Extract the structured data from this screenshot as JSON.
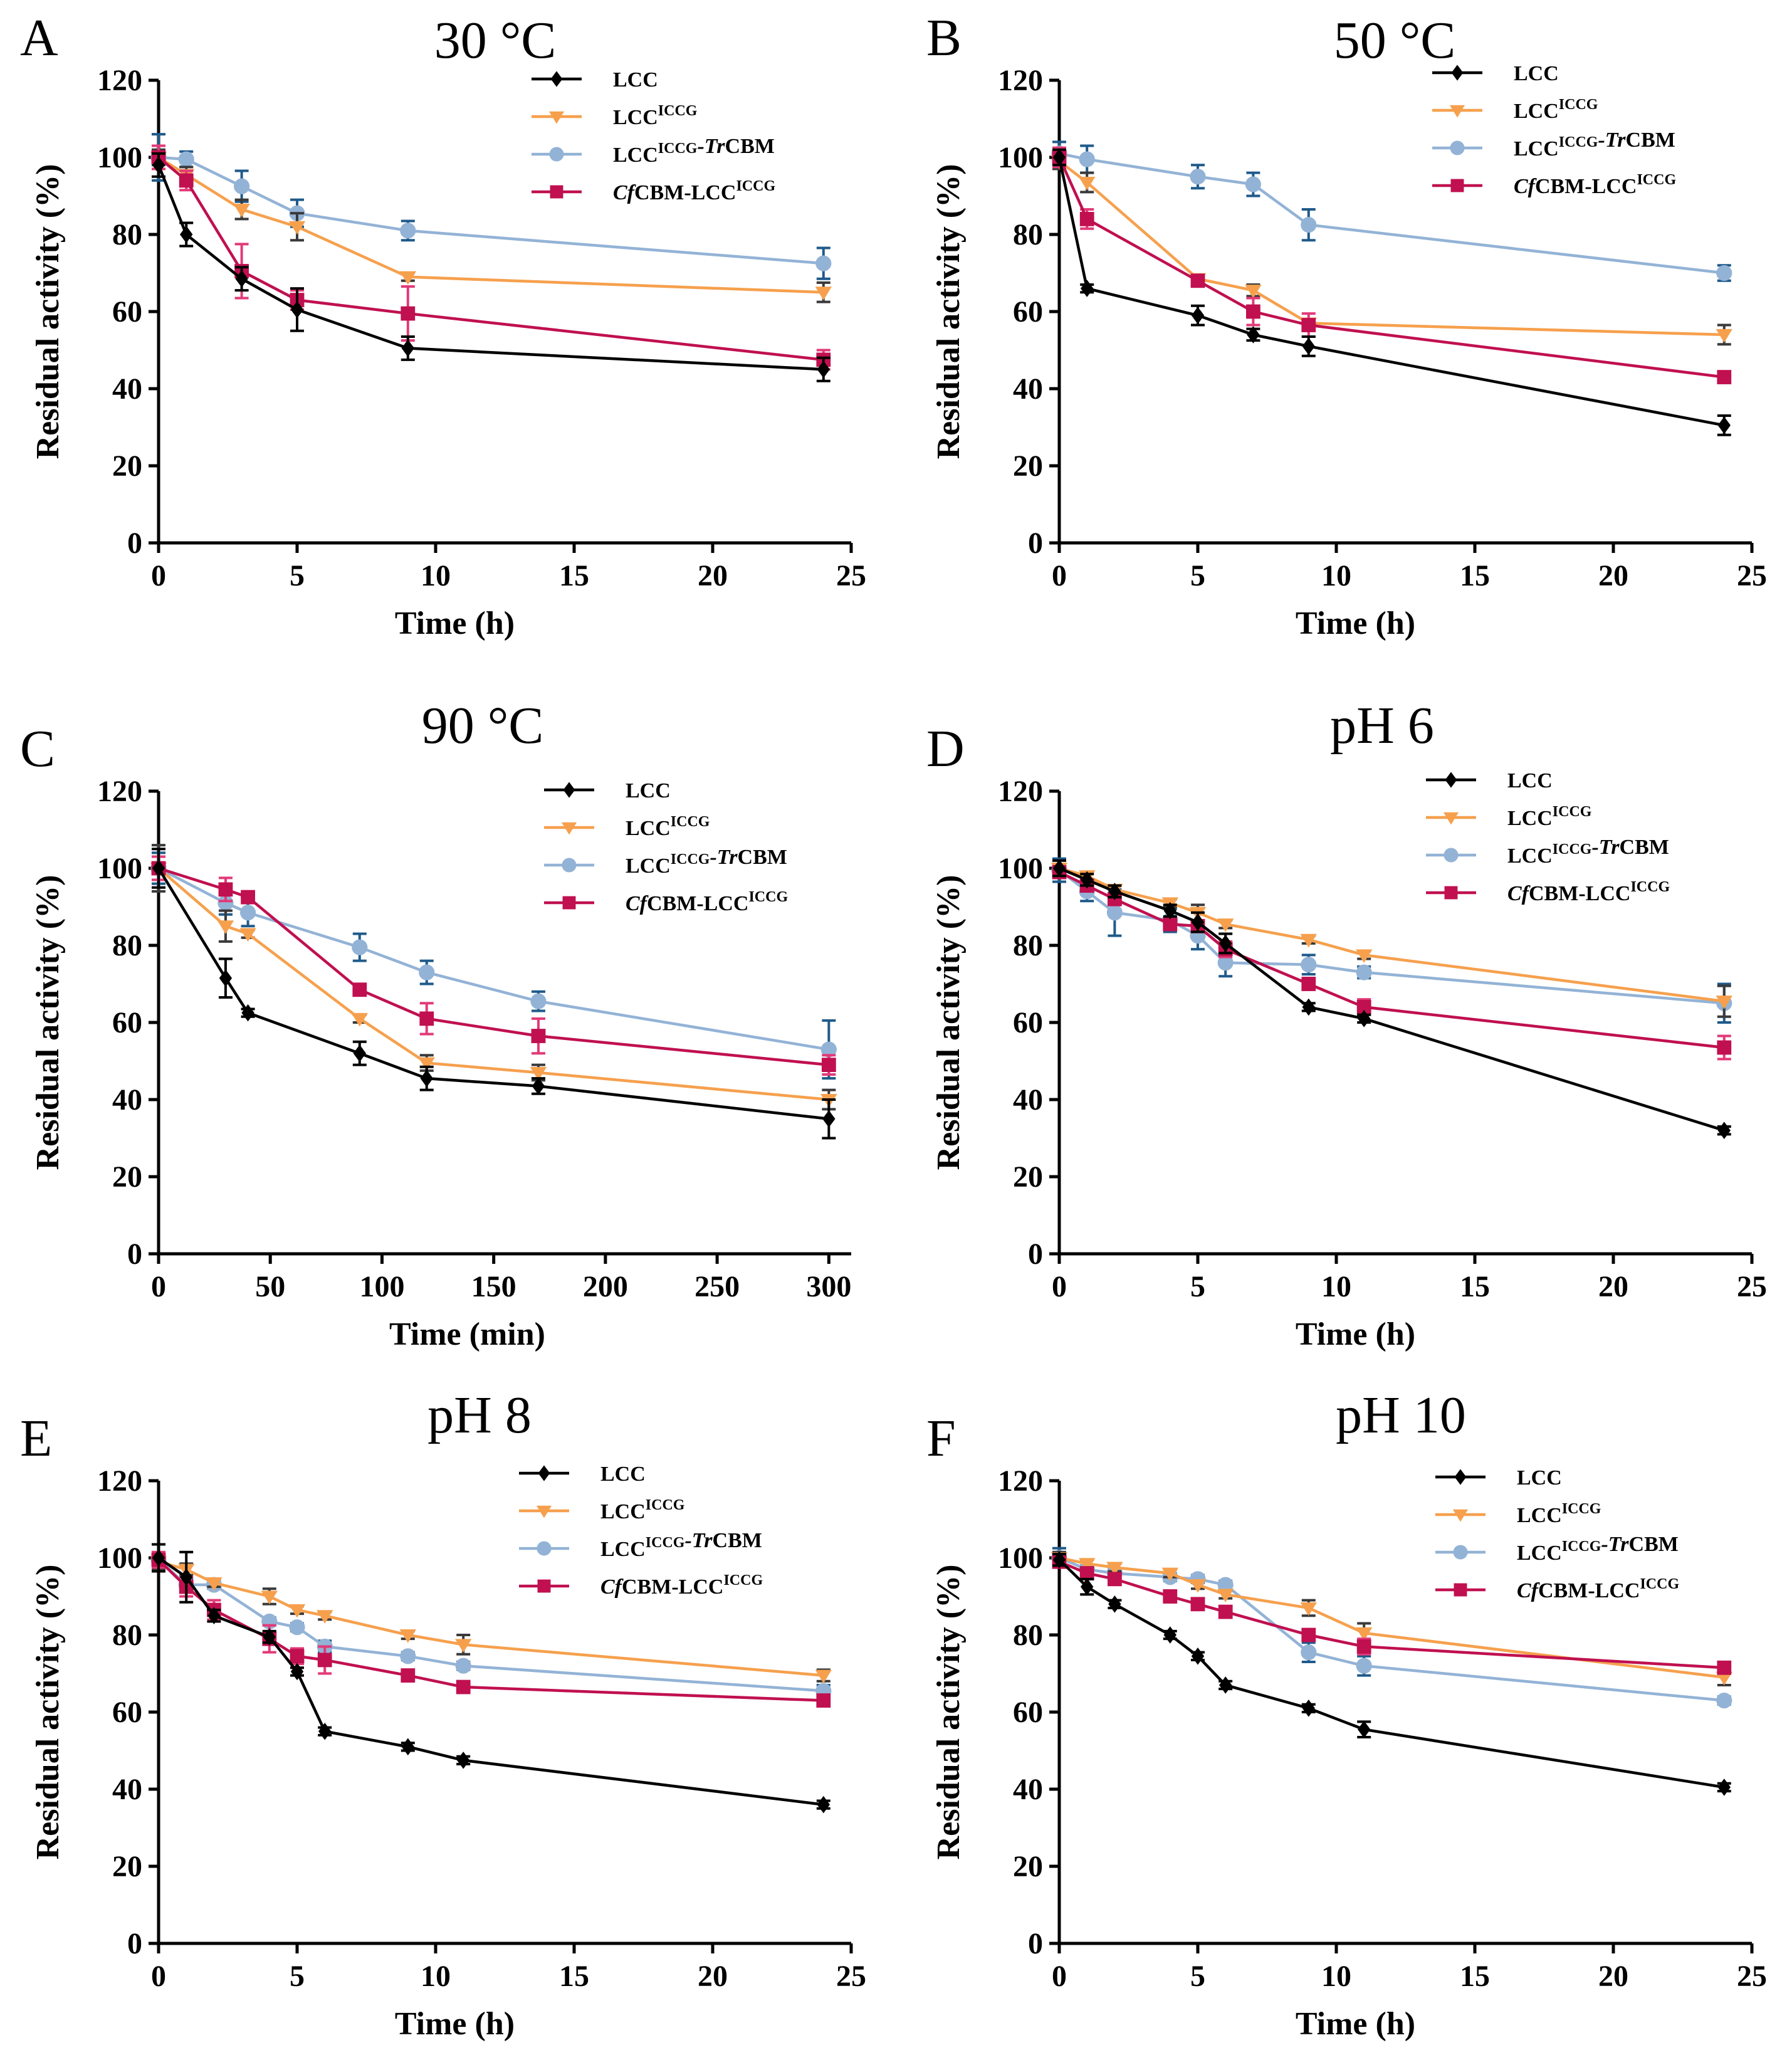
{
  "colors": {
    "LCC": "#000000",
    "LCC_ICCG": "#f6a04d",
    "LCC_ICCG_TrCBM": "#93b3d6",
    "CfCBM_LCC_ICCG": "#c0104f",
    "LCC_ICCG_TrCBM_err": "#1f5a8a",
    "CfCBM_LCC_ICCG_err": "#e23a78"
  },
  "legend_entries": [
    {
      "key": "LCC",
      "base": "LCC",
      "sup": "",
      "suffix_italic": "",
      "suffix": "",
      "prefix_italic": "",
      "marker": "diamond-icon"
    },
    {
      "key": "LCC_ICCG",
      "base": "LCC",
      "sup": "ICCG",
      "suffix_italic": "",
      "suffix": "",
      "prefix_italic": "",
      "marker": "triangle-down-icon"
    },
    {
      "key": "LCC_ICCG_TrCBM",
      "base": "LCC",
      "sup": "ICCG",
      "suffix_italic": "-Tr",
      "suffix": "CBM",
      "prefix_italic": "",
      "marker": "circle-icon"
    },
    {
      "key": "CfCBM_LCC_ICCG",
      "base": "CBM-LCC",
      "sup": "ICCG",
      "suffix_italic": "",
      "suffix": "",
      "prefix_italic": "Cf",
      "marker": "square-icon"
    }
  ],
  "chart_data": [
    {
      "type": "line",
      "panel": "A",
      "title": "30 °C",
      "xlabel": "Time (h)",
      "ylabel": "Residual activity (%)",
      "xlim": [
        0,
        25
      ],
      "ylim": [
        0,
        120
      ],
      "xticks": [
        0,
        5,
        10,
        15,
        20,
        25
      ],
      "yticks": [
        0,
        20,
        40,
        60,
        80,
        100,
        120
      ],
      "legend_position": "top-right",
      "series": [
        {
          "key": "LCC",
          "name": "LCC",
          "x": [
            0,
            1,
            3,
            5,
            9,
            24
          ],
          "y": [
            98,
            80,
            68.5,
            60.5,
            50.5,
            45
          ],
          "err": [
            3,
            3,
            3,
            5.5,
            3,
            3
          ]
        },
        {
          "key": "LCC_ICCG",
          "name": "LCCICCG",
          "x": [
            0,
            1,
            3,
            5,
            9,
            24
          ],
          "y": [
            100,
            95.5,
            86.5,
            82,
            69,
            65
          ],
          "err": [
            2,
            2,
            2.5,
            3.5,
            1,
            2.5
          ]
        },
        {
          "key": "LCC_ICCG_TrCBM",
          "name": "LCCICCG-TrCBM",
          "x": [
            0,
            1,
            3,
            5,
            9,
            24
          ],
          "y": [
            100,
            99.5,
            92.5,
            85.5,
            81,
            72.5
          ],
          "err": [
            6,
            2,
            4,
            3.5,
            2.5,
            4
          ]
        },
        {
          "key": "CfCBM_LCC_ICCG",
          "name": "CfCBM-LCCICCG",
          "x": [
            0,
            1,
            3,
            5,
            9,
            24
          ],
          "y": [
            100,
            94,
            70.5,
            63,
            59.5,
            47.5
          ],
          "err": [
            3,
            2.5,
            7,
            2.5,
            7,
            2.5
          ]
        }
      ]
    },
    {
      "type": "line",
      "panel": "B",
      "title": "50 °C",
      "xlabel": "Time (h)",
      "ylabel": "Residual activity (%)",
      "xlim": [
        0,
        25
      ],
      "ylim": [
        0,
        120
      ],
      "xticks": [
        0,
        5,
        10,
        15,
        20,
        25
      ],
      "yticks": [
        0,
        20,
        40,
        60,
        80,
        100,
        120
      ],
      "legend_position": "top-right",
      "series": [
        {
          "key": "LCC",
          "name": "LCC",
          "x": [
            0,
            1,
            5,
            7,
            9,
            24
          ],
          "y": [
            100,
            66,
            59,
            54,
            51,
            30.5
          ],
          "err": [
            2,
            1,
            2.5,
            1.5,
            2.5,
            2.5
          ]
        },
        {
          "key": "LCC_ICCG",
          "name": "LCCICCG",
          "x": [
            0,
            1,
            5,
            7,
            9,
            24
          ],
          "y": [
            99,
            93.5,
            68.5,
            65.5,
            57,
            54
          ],
          "err": [
            2,
            2.5,
            1,
            1.5,
            1,
            2.5
          ]
        },
        {
          "key": "LCC_ICCG_TrCBM",
          "name": "LCCICCG-TrCBM",
          "x": [
            0,
            1,
            5,
            7,
            9,
            24
          ],
          "y": [
            101,
            99.5,
            95,
            93,
            82.5,
            70
          ],
          "err": [
            3,
            3.5,
            3,
            3,
            4,
            2
          ]
        },
        {
          "key": "CfCBM_LCC_ICCG",
          "name": "CfCBM-LCCICCG",
          "x": [
            0,
            1,
            5,
            7,
            9,
            24
          ],
          "y": [
            100,
            84,
            68,
            60,
            56.5,
            43
          ],
          "err": [
            2.5,
            2.5,
            1,
            3.5,
            3,
            1
          ]
        }
      ]
    },
    {
      "type": "line",
      "panel": "C",
      "title": "90 °C",
      "xlabel": "Time (min)",
      "ylabel": "Residual activity (%)",
      "xlim": [
        0,
        310
      ],
      "ylim": [
        0,
        120
      ],
      "xticks": [
        0,
        50,
        100,
        150,
        200,
        250,
        300
      ],
      "yticks": [
        0,
        20,
        40,
        60,
        80,
        100,
        120
      ],
      "legend_position": "top-right",
      "series": [
        {
          "key": "LCC",
          "name": "LCC",
          "x": [
            0,
            30,
            40,
            90,
            120,
            170,
            300
          ],
          "y": [
            100,
            71.5,
            62.5,
            52,
            45.5,
            43.5,
            35
          ],
          "err": [
            5,
            5,
            1,
            3,
            3,
            2,
            5
          ]
        },
        {
          "key": "LCC_ICCG",
          "name": "LCCICCG",
          "x": [
            0,
            30,
            40,
            90,
            120,
            170,
            300
          ],
          "y": [
            100,
            85,
            83,
            61,
            49.5,
            47,
            40
          ],
          "err": [
            6,
            4,
            1,
            1,
            2,
            2,
            2.5
          ]
        },
        {
          "key": "LCC_ICCG_TrCBM",
          "name": "LCCICCG-TrCBM",
          "x": [
            0,
            30,
            40,
            90,
            120,
            170,
            300
          ],
          "y": [
            100,
            91,
            88.5,
            79.5,
            73,
            65.5,
            53
          ],
          "err": [
            4,
            3,
            3.5,
            3.5,
            3,
            2.5,
            7.5
          ]
        },
        {
          "key": "CfCBM_LCC_ICCG",
          "name": "CfCBM-LCCICCG",
          "x": [
            0,
            30,
            40,
            90,
            120,
            170,
            300
          ],
          "y": [
            100,
            94.5,
            92.5,
            68.5,
            61,
            56.5,
            49
          ],
          "err": [
            3,
            3,
            1.5,
            1,
            4,
            4.5,
            2.5
          ]
        }
      ]
    },
    {
      "type": "line",
      "panel": "D",
      "title": "pH 6",
      "xlabel": "Time (h)",
      "ylabel": "Residual activity (%)",
      "xlim": [
        0,
        25
      ],
      "ylim": [
        0,
        120
      ],
      "xticks": [
        0,
        5,
        10,
        15,
        20,
        25
      ],
      "yticks": [
        0,
        20,
        40,
        60,
        80,
        100,
        120
      ],
      "legend_position": "top-right",
      "series": [
        {
          "key": "LCC",
          "name": "LCC",
          "x": [
            0,
            1,
            2,
            4,
            5,
            6,
            9,
            11,
            24
          ],
          "y": [
            100,
            97,
            94,
            89,
            86,
            80.5,
            64,
            61,
            32
          ],
          "err": [
            2,
            1.5,
            1.5,
            1.5,
            2.5,
            2.5,
            1,
            1,
            1
          ]
        },
        {
          "key": "LCC_ICCG",
          "name": "LCCICCG",
          "x": [
            0,
            1,
            2,
            4,
            5,
            6,
            9,
            11,
            24
          ],
          "y": [
            100,
            98,
            94.5,
            91,
            88.5,
            85.5,
            81.5,
            77.5,
            65.5
          ],
          "err": [
            2,
            1,
            1,
            1,
            2,
            1,
            1,
            1,
            4
          ]
        },
        {
          "key": "LCC_ICCG_TrCBM",
          "name": "LCCICCG-TrCBM",
          "x": [
            0,
            1,
            2,
            4,
            5,
            6,
            9,
            11,
            24
          ],
          "y": [
            99.5,
            94,
            88.5,
            86.5,
            82.5,
            75.5,
            75,
            73,
            65
          ],
          "err": [
            3,
            2.5,
            6,
            3,
            3.5,
            3.5,
            2.5,
            1.5,
            5
          ]
        },
        {
          "key": "CfCBM_LCC_ICCG",
          "name": "CfCBM-LCCICCG",
          "x": [
            0,
            1,
            2,
            4,
            5,
            6,
            9,
            11,
            24
          ],
          "y": [
            99,
            95.5,
            92,
            85.5,
            85,
            79,
            70,
            64,
            53.5
          ],
          "err": [
            1.5,
            1.5,
            1.5,
            1.5,
            1.5,
            2,
            1.5,
            2,
            3
          ]
        }
      ]
    },
    {
      "type": "line",
      "panel": "E",
      "title": "pH 8",
      "xlabel": "Time (h)",
      "ylabel": "Residual activity (%)",
      "xlim": [
        0,
        25
      ],
      "ylim": [
        0,
        120
      ],
      "xticks": [
        0,
        5,
        10,
        15,
        20,
        25
      ],
      "yticks": [
        0,
        20,
        40,
        60,
        80,
        100,
        120
      ],
      "legend_position": "top-right",
      "series": [
        {
          "key": "LCC",
          "name": "LCC",
          "x": [
            0,
            1,
            2,
            4,
            5,
            6,
            9,
            11,
            24
          ],
          "y": [
            100,
            95,
            85,
            79.5,
            70.5,
            55,
            51,
            47.5,
            36
          ],
          "err": [
            3.5,
            6.5,
            1.5,
            1.5,
            1,
            1,
            1,
            1,
            1
          ]
        },
        {
          "key": "LCC_ICCG",
          "name": "LCCICCG",
          "x": [
            0,
            1,
            2,
            4,
            5,
            6,
            9,
            11,
            24
          ],
          "y": [
            99,
            97,
            93.5,
            90,
            86.5,
            85,
            80,
            77.5,
            69.5
          ],
          "err": [
            2,
            1.5,
            1,
            2,
            1,
            1,
            1,
            2.5,
            1.5
          ]
        },
        {
          "key": "LCC_ICCG_TrCBM",
          "name": "LCCICCG-TrCBM",
          "x": [
            0,
            1,
            2,
            4,
            5,
            6,
            9,
            11,
            24
          ],
          "y": [
            99.5,
            93,
            93,
            83.5,
            82,
            77,
            74.5,
            72,
            65.5
          ],
          "err": [
            1.5,
            1.5,
            1,
            1,
            1,
            1.5,
            1,
            1,
            1.5
          ]
        },
        {
          "key": "CfCBM_LCC_ICCG",
          "name": "CfCBM-LCCICCG",
          "x": [
            0,
            1,
            2,
            4,
            5,
            6,
            9,
            11,
            24
          ],
          "y": [
            99.5,
            92.5,
            86.5,
            79,
            74.5,
            73.5,
            69.5,
            66.5,
            63
          ],
          "err": [
            2,
            2.5,
            2.5,
            3.5,
            2,
            3.5,
            1,
            1,
            1
          ]
        }
      ]
    },
    {
      "type": "line",
      "panel": "F",
      "title": "pH 10",
      "xlabel": "Time (h)",
      "ylabel": "Residual activity (%)",
      "xlim": [
        0,
        25
      ],
      "ylim": [
        0,
        120
      ],
      "xticks": [
        0,
        5,
        10,
        15,
        20,
        25
      ],
      "yticks": [
        0,
        20,
        40,
        60,
        80,
        100,
        120
      ],
      "legend_position": "top-right",
      "series": [
        {
          "key": "LCC",
          "name": "LCC",
          "x": [
            0,
            1,
            2,
            4,
            5,
            6,
            9,
            11,
            24
          ],
          "y": [
            99.5,
            92.5,
            88,
            80,
            74.5,
            67,
            61,
            55.5,
            40.5
          ],
          "err": [
            1.5,
            2,
            1,
            1,
            1,
            1,
            1,
            2,
            1
          ]
        },
        {
          "key": "LCC_ICCG",
          "name": "LCCICCG",
          "x": [
            0,
            1,
            2,
            4,
            5,
            6,
            9,
            11,
            24
          ],
          "y": [
            100,
            98.5,
            97.5,
            96,
            93,
            90.5,
            87,
            80.5,
            69
          ],
          "err": [
            1.5,
            1,
            1,
            1,
            1,
            1,
            2,
            2.5,
            2
          ]
        },
        {
          "key": "LCC_ICCG_TrCBM",
          "name": "LCCICCG-TrCBM",
          "x": [
            0,
            1,
            2,
            4,
            5,
            6,
            9,
            11,
            24
          ],
          "y": [
            100,
            97,
            96,
            95,
            94.5,
            93,
            75.5,
            72,
            63
          ],
          "err": [
            2.5,
            1,
            1,
            1,
            1,
            1,
            2.5,
            2.5,
            1
          ]
        },
        {
          "key": "CfCBM_LCC_ICCG",
          "name": "CfCBM-LCCICCG",
          "x": [
            0,
            1,
            2,
            4,
            5,
            6,
            9,
            11,
            24
          ],
          "y": [
            99,
            96,
            94.5,
            90,
            88,
            86,
            80,
            77,
            71.5
          ],
          "err": [
            1.5,
            1.5,
            1.5,
            1.5,
            1,
            1,
            1,
            2,
            1
          ]
        }
      ]
    }
  ]
}
